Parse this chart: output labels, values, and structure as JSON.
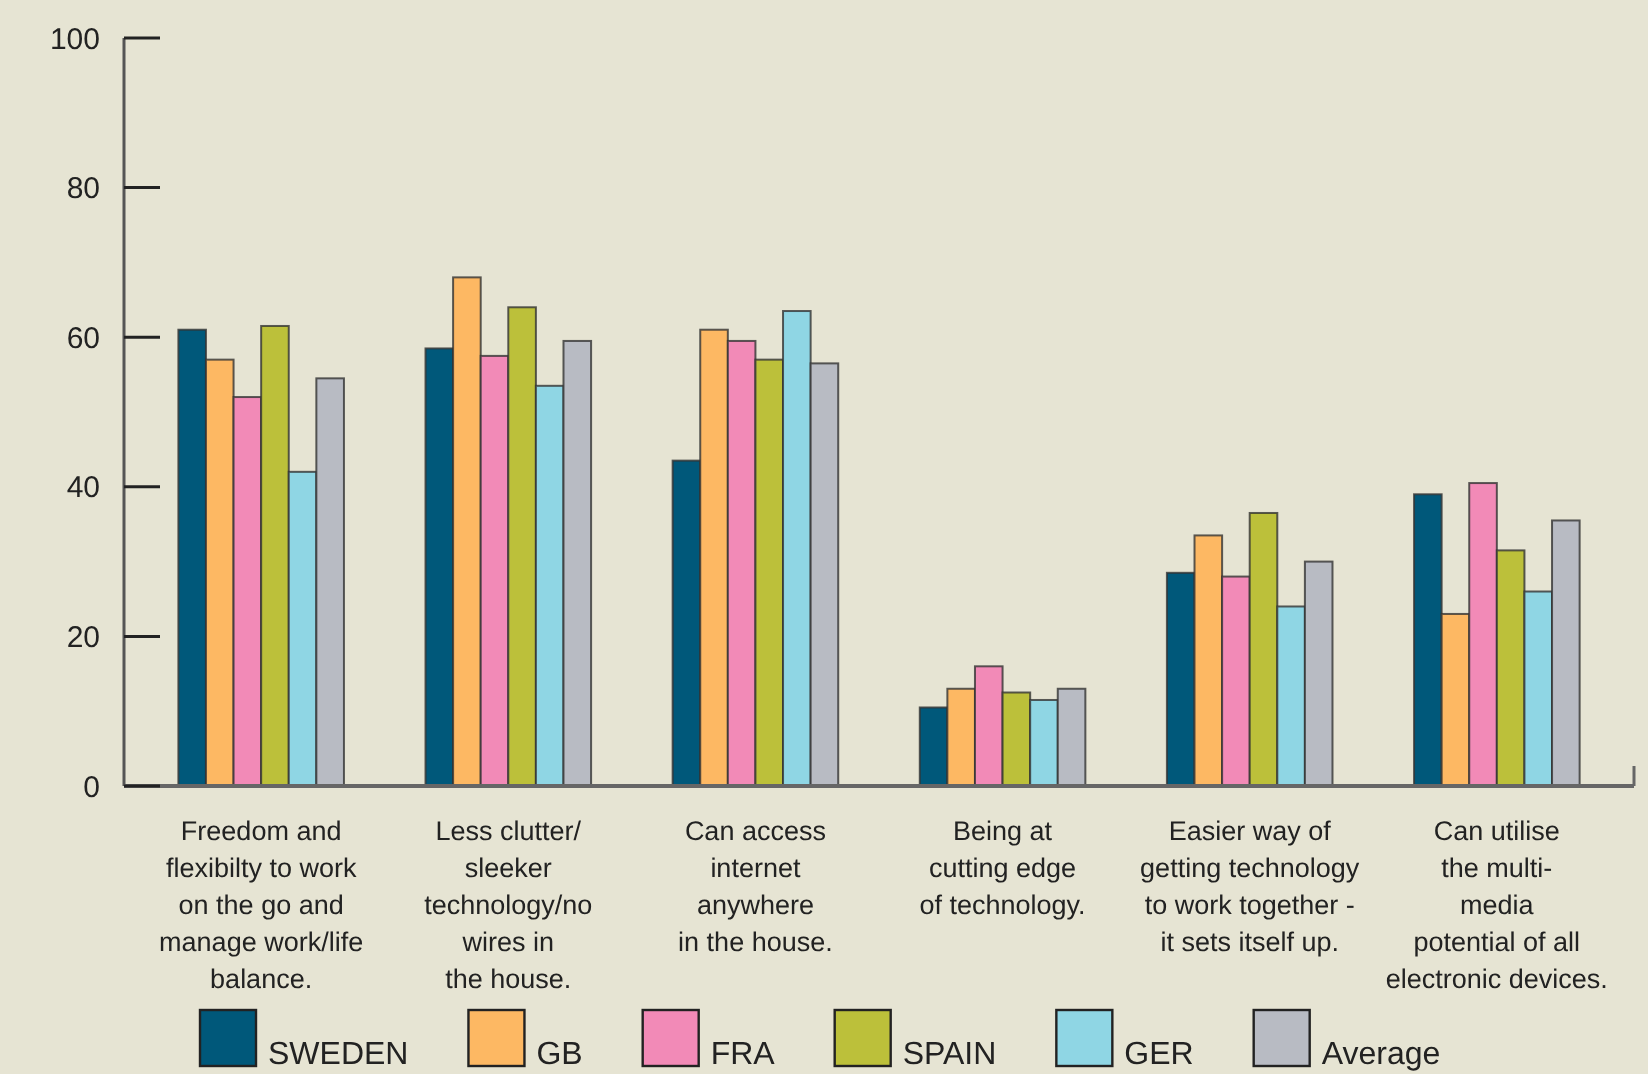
{
  "chart_data": {
    "type": "bar",
    "categories": [
      "Freedom and\nflexibilty to work\non the go and\nmanage work/life\nbalance.",
      "Less clutter/\nsleeker\ntechnology/no\nwires in\nthe house.",
      "Can access\ninternet\nanywhere\nin the house.",
      "Being at\ncutting edge\nof technology.",
      "Easier way of\ngetting technology\nto work together -\nit sets itself up.",
      "Can utilise\nthe multi-\nmedia\npotential of all\nelectronic devices."
    ],
    "series": [
      {
        "name": "SWEDEN",
        "color": "#00587a",
        "values": [
          61,
          58.5,
          43.5,
          10.5,
          28.5,
          39
        ]
      },
      {
        "name": "GB",
        "color": "#fdb863",
        "values": [
          57,
          68,
          61,
          13,
          33.5,
          23
        ]
      },
      {
        "name": "FRA",
        "color": "#f28ab7",
        "values": [
          52,
          57.5,
          59.5,
          16,
          28,
          40.5
        ]
      },
      {
        "name": "SPAIN",
        "color": "#bcc03a",
        "values": [
          61.5,
          64,
          57,
          12.5,
          36.5,
          31.5
        ]
      },
      {
        "name": "GER",
        "color": "#8fd6e4",
        "values": [
          42,
          53.5,
          63.5,
          11.5,
          24,
          26
        ]
      },
      {
        "name": "Average",
        "color": "#b8bbc3",
        "values": [
          54.5,
          59.5,
          56.5,
          13,
          30,
          35.5
        ]
      }
    ],
    "ylim": [
      0,
      100
    ],
    "yticks": [
      0,
      20,
      40,
      60,
      80,
      100
    ],
    "grid": false,
    "legend": "bottom"
  }
}
